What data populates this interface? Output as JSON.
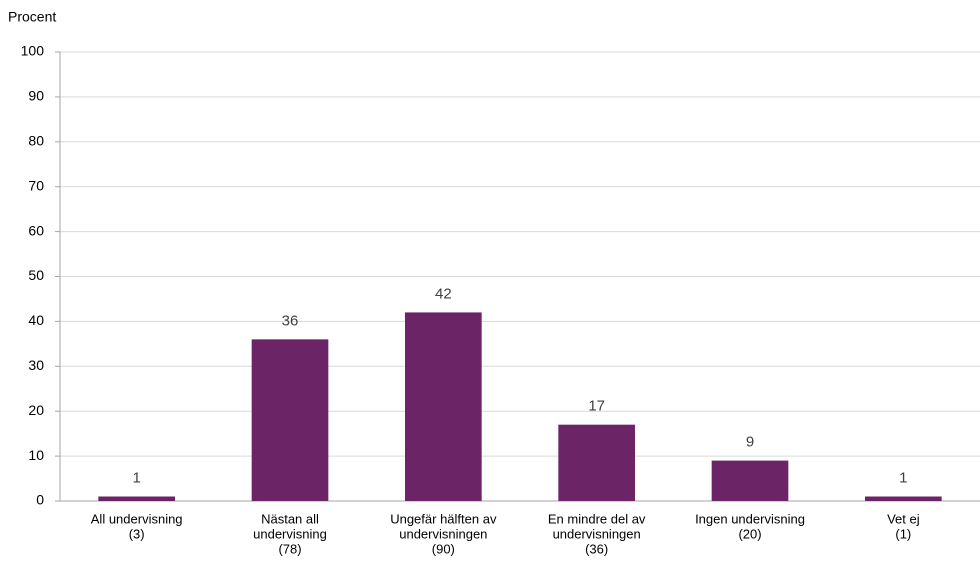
{
  "chart_data": {
    "type": "bar",
    "y_axis_label": "Procent",
    "categories": [
      [
        "All undervisning",
        "(3)"
      ],
      [
        "Nästan all",
        "undervisning",
        "(78)"
      ],
      [
        "Ungefär hälften av",
        "undervisningen",
        "(90)"
      ],
      [
        "En mindre del av",
        "undervisningen",
        "(36)"
      ],
      [
        "Ingen undervisning",
        "(20)"
      ],
      [
        "Vet ej",
        "(1)"
      ]
    ],
    "values": [
      1,
      36,
      42,
      17,
      9,
      1
    ],
    "color": "#6b2466",
    "ylim": [
      0,
      100
    ],
    "yticks": [
      0,
      10,
      20,
      30,
      40,
      50,
      60,
      70,
      80,
      90,
      100
    ],
    "grid": true
  }
}
